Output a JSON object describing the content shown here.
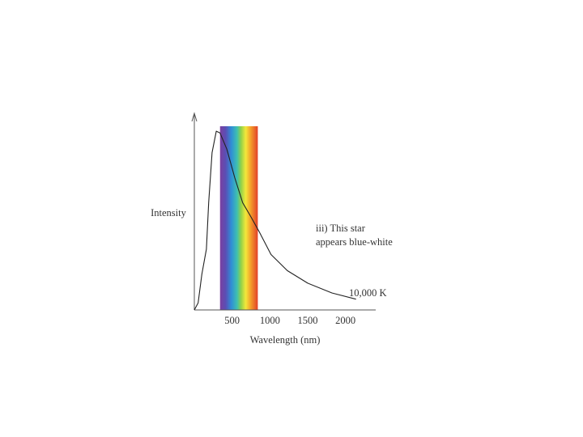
{
  "chart_data": {
    "type": "line",
    "y_label": "Intensity",
    "x_label": "Wavelength (nm)",
    "annotation": [
      "iii) This star",
      "appears blue-white"
    ],
    "curve_label": "10,000 K",
    "x": [
      0,
      50,
      100,
      160,
      190,
      235,
      290,
      340,
      430,
      535,
      640,
      750,
      855,
      1015,
      1230,
      1500,
      1820,
      2140
    ],
    "values": [
      0,
      0.04,
      0.2,
      0.34,
      0.6,
      0.88,
      1.0,
      0.99,
      0.9,
      0.74,
      0.6,
      0.52,
      0.44,
      0.31,
      0.22,
      0.15,
      0.095,
      0.06
    ],
    "color": "#222222",
    "spectrum_band": [
      340,
      840
    ],
    "xlim": [
      0,
      2400
    ],
    "xticks": [
      500,
      1000,
      1500,
      2000
    ],
    "ylim": [
      0,
      1.1
    ]
  }
}
